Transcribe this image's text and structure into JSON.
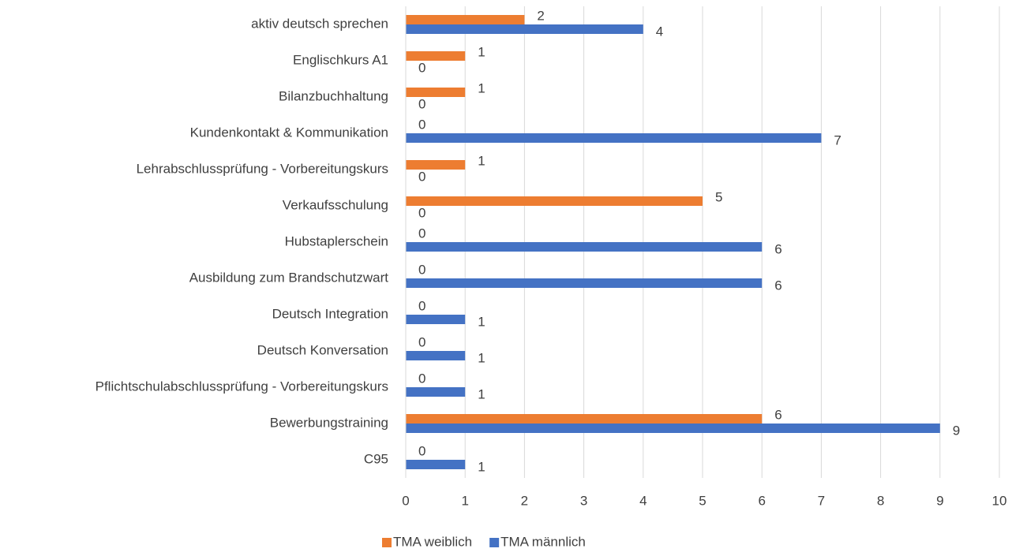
{
  "chart_data": {
    "type": "bar",
    "orientation": "horizontal",
    "categories": [
      "aktiv deutsch sprechen",
      "Englischkurs A1",
      "Bilanzbuchhaltung",
      "Kundenkontakt & Kommunikation",
      "Lehrabschlussprüfung - Vorbereitungskurs",
      "Verkaufsschulung",
      "Hubstaplerschein",
      "Ausbildung zum Brandschutzwart",
      "Deutsch Integration",
      "Deutsch Konversation",
      "Pflichtschulabschlussprüfung - Vorbereitungskurs",
      "Bewerbungstraining",
      "C95"
    ],
    "series": [
      {
        "name": "TMA weiblich",
        "color": "#ed7d31",
        "values": [
          2,
          1,
          1,
          0,
          1,
          5,
          0,
          0,
          0,
          0,
          0,
          6,
          0
        ]
      },
      {
        "name": "TMA männlich",
        "color": "#4472c4",
        "values": [
          4,
          0,
          0,
          7,
          0,
          0,
          6,
          6,
          1,
          1,
          1,
          9,
          1
        ]
      }
    ],
    "xlim": [
      0,
      10
    ],
    "xticks": [
      0,
      1,
      2,
      3,
      4,
      5,
      6,
      7,
      8,
      9,
      10
    ],
    "grid": true,
    "legend": "bottom"
  }
}
